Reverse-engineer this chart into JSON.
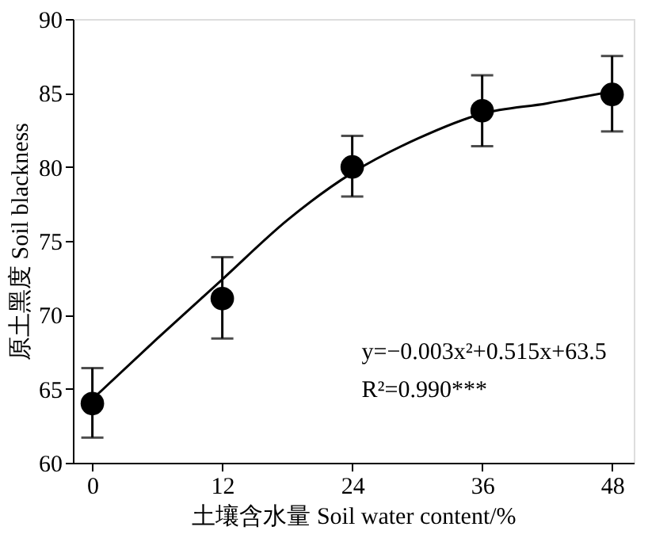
{
  "chart_data": {
    "type": "scatter",
    "xlabel": "土壤含水量 Soil water content/%",
    "ylabel": "原土黑度 Soil blackness",
    "x": [
      0,
      12,
      24,
      36,
      48
    ],
    "series": [
      {
        "color": "#000000",
        "marker": "circle",
        "values": [
          64.0,
          71.1,
          80.0,
          83.8,
          84.9
        ],
        "errors": [
          [
            61.7,
            66.4
          ],
          [
            68.4,
            73.9
          ],
          [
            78.0,
            82.1
          ],
          [
            81.4,
            86.2
          ],
          [
            82.4,
            87.5
          ]
        ]
      },
      {
        "type": "line",
        "color": "#000000",
        "marker": "none",
        "line_style": "solid",
        "x": [
          0,
          6,
          12,
          18,
          24,
          30,
          36,
          42,
          48
        ],
        "values": [
          64.3,
          68.4,
          72.4,
          76.4,
          79.6,
          81.9,
          83.6,
          84.3,
          85.1
        ]
      }
    ],
    "annotations": [
      "y=−0.003x²+0.515x+63.5",
      "R²=0.990***"
    ],
    "xlim": [
      -1.8,
      50
    ],
    "xticks": [
      0,
      12,
      24,
      36,
      48
    ],
    "ylim": [
      60,
      90
    ],
    "yticks": [
      60,
      65,
      70,
      75,
      80,
      85,
      90
    ],
    "grid": false
  }
}
